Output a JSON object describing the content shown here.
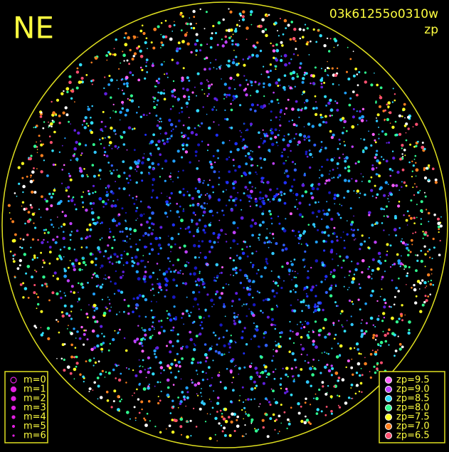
{
  "direction_label": "NE",
  "image_id": "03k61255o0310w",
  "color_mode": "zp",
  "magnitude_legend": {
    "labels": [
      "m=0",
      "m=1",
      "m=2",
      "m=3",
      "m=4",
      "m=5",
      "m=6"
    ]
  },
  "zp_legend": {
    "labels": [
      "zp=9.5",
      "zp=9.0",
      "zp=8.5",
      "zp=8.0",
      "zp=7.5",
      "zp=7.0",
      "zp=6.5"
    ],
    "colors": [
      "#ff60ff",
      "#c040ff",
      "#30e0ff",
      "#30ff90",
      "#ffff20",
      "#ff8020",
      "#ff5070"
    ]
  }
}
